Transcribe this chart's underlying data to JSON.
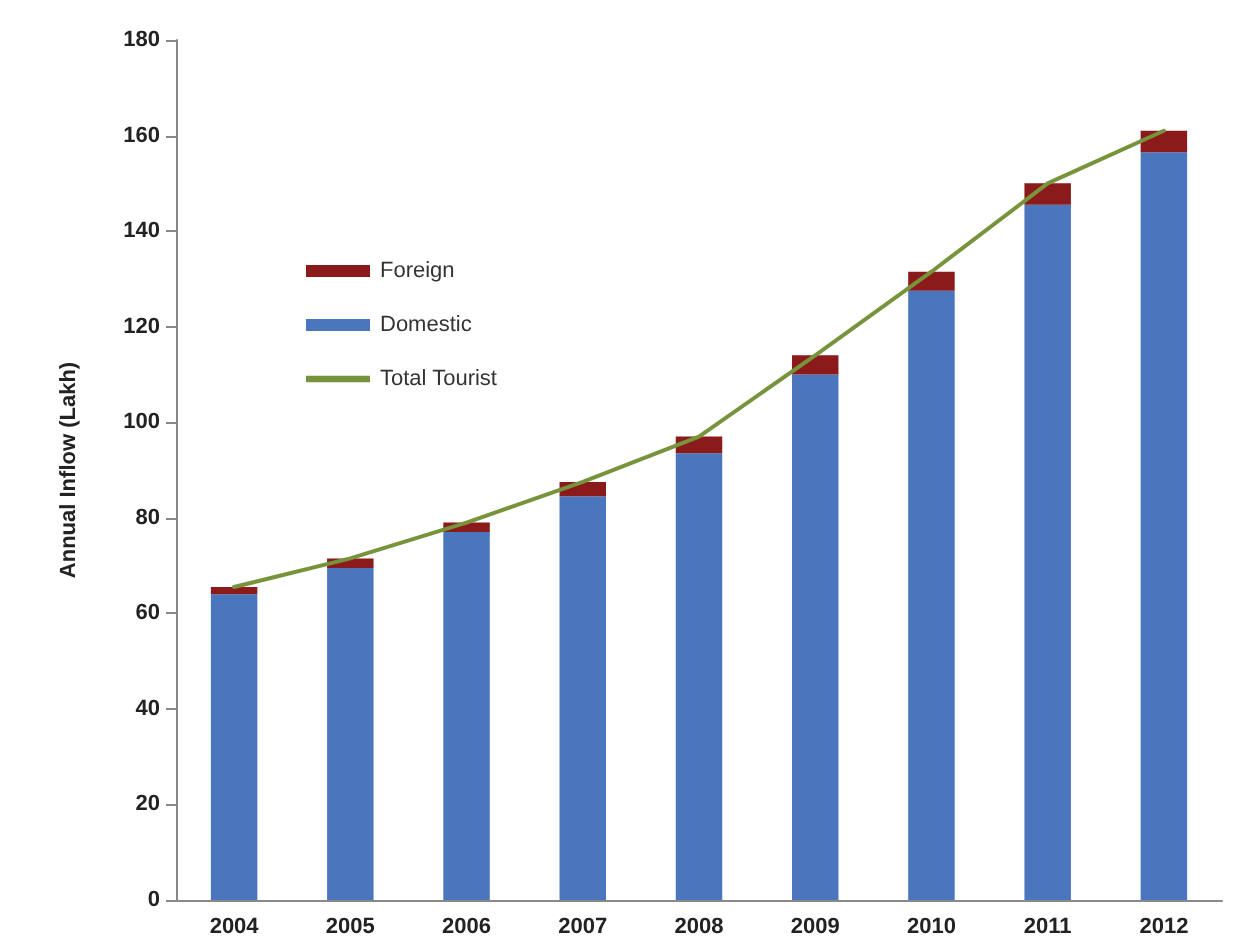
{
  "chart_data": {
    "type": "bar",
    "ylabel": "Annual Inflow (Lakh)",
    "categories": [
      "2004",
      "2005",
      "2006",
      "2007",
      "2008",
      "2009",
      "2010",
      "2011",
      "2012"
    ],
    "stacked": true,
    "series": [
      {
        "name": "Domestic",
        "color": "#4a76bd",
        "values": [
          64,
          69.5,
          77,
          84.5,
          93.5,
          110,
          127.5,
          145.5,
          156.5
        ]
      },
      {
        "name": "Foreign",
        "color": "#8b1a1a",
        "values": [
          1.5,
          2,
          2,
          3,
          3.5,
          4,
          4,
          4.5,
          4.5
        ]
      },
      {
        "name": "Total Tourist",
        "type": "line",
        "color": "#77933c",
        "marker": "none",
        "values": [
          65.5,
          71.5,
          79,
          87.5,
          97,
          114,
          131.5,
          150,
          161
        ]
      }
    ],
    "ylim": [
      0,
      180
    ],
    "yticks": [
      0,
      20,
      40,
      60,
      80,
      100,
      120,
      140,
      160,
      180
    ],
    "grid": false,
    "legend": "top left"
  }
}
